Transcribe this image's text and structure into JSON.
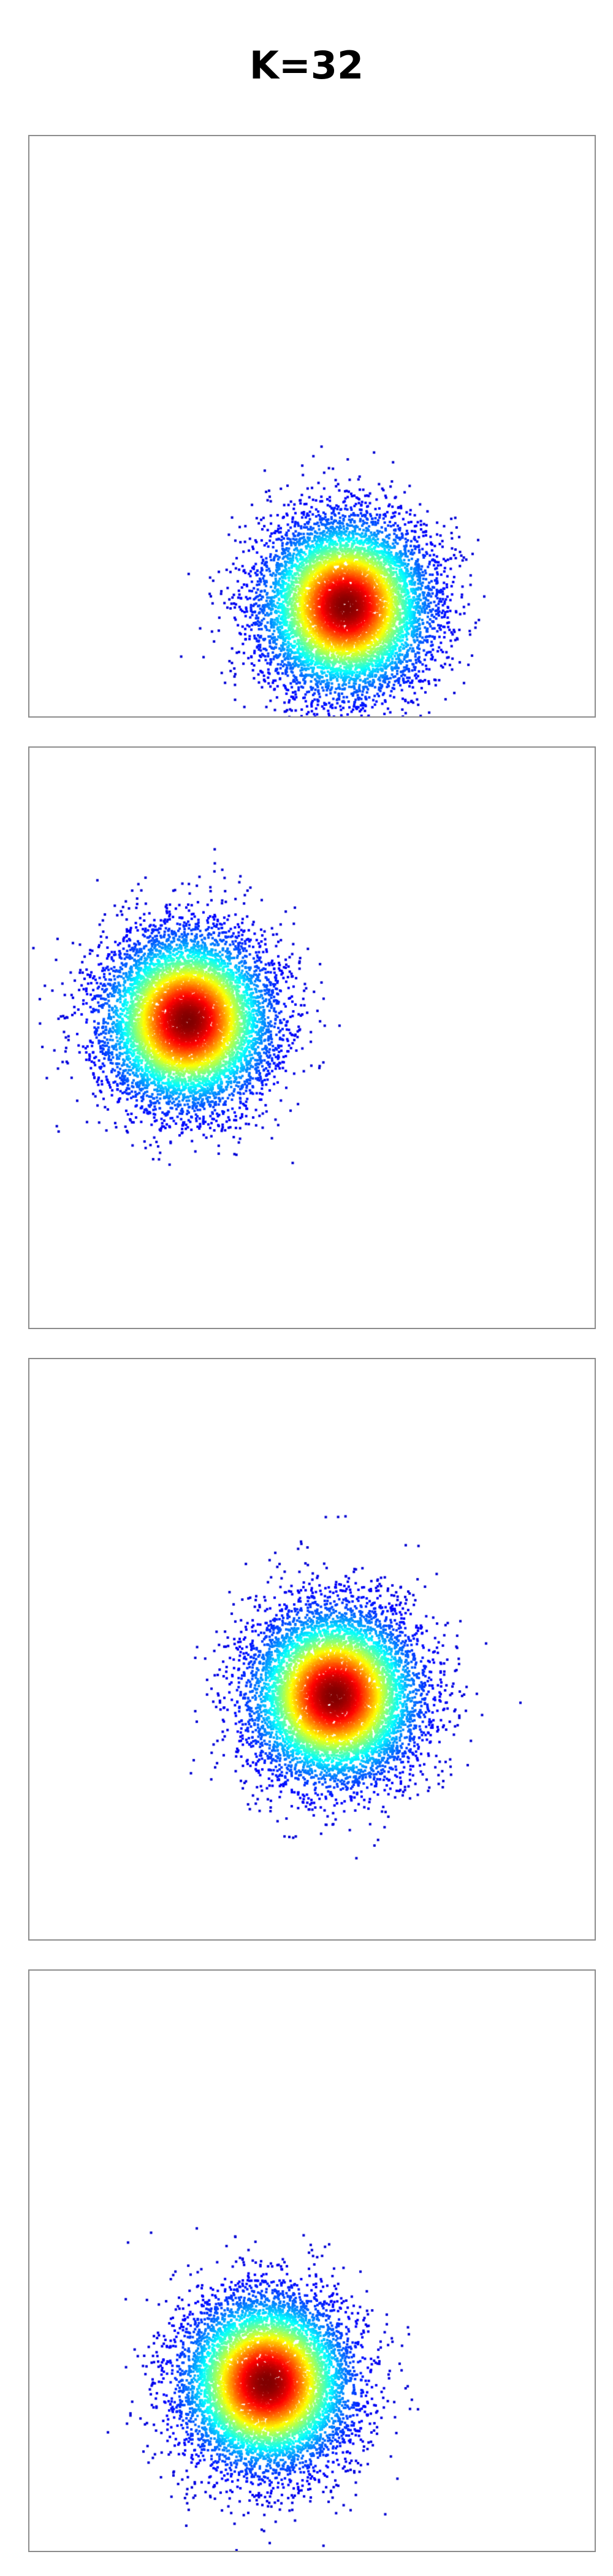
{
  "title": "K=32",
  "chart_data": [
    {
      "type": "scatter",
      "title": "",
      "xlim": [
        0,
        1
      ],
      "ylim": [
        0,
        1
      ],
      "center": [
        0.56,
        0.19
      ],
      "std": 0.075,
      "points": 9000,
      "colormap": "jet-density",
      "grid": false
    },
    {
      "type": "scatter",
      "title": "",
      "xlim": [
        0,
        1
      ],
      "ylim": [
        0,
        1
      ],
      "center": [
        0.28,
        0.53
      ],
      "std": 0.075,
      "points": 9000,
      "colormap": "jet-density",
      "grid": false
    },
    {
      "type": "scatter",
      "title": "",
      "xlim": [
        0,
        1
      ],
      "ylim": [
        0,
        1
      ],
      "center": [
        0.54,
        0.42
      ],
      "std": 0.075,
      "points": 9000,
      "colormap": "jet-density",
      "grid": false
    },
    {
      "type": "scatter",
      "title": "",
      "xlim": [
        0,
        1
      ],
      "ylim": [
        0,
        1
      ],
      "center": [
        0.42,
        0.29
      ],
      "std": 0.075,
      "points": 9000,
      "colormap": "jet-density",
      "grid": false
    }
  ]
}
